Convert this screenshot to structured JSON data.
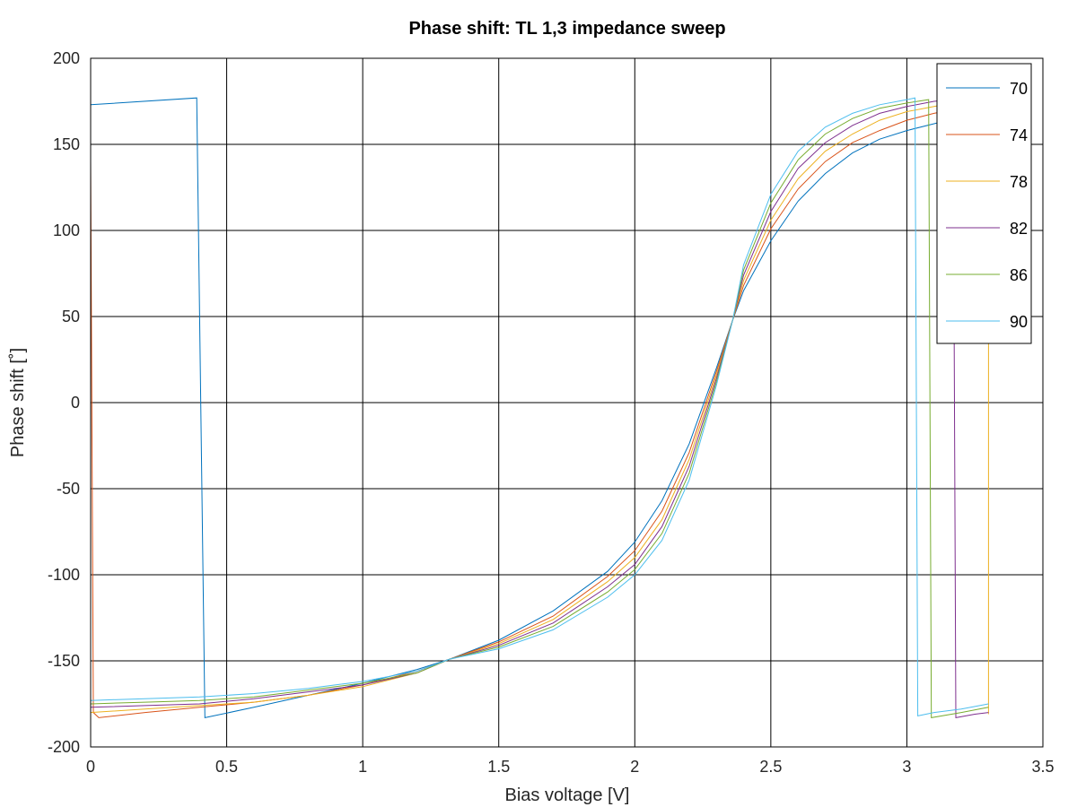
{
  "chart_data": {
    "type": "line",
    "title": "Phase shift: TL 1,3 impedance sweep",
    "xlabel": "Bias voltage [V]",
    "ylabel": "Phase shift [˚]",
    "xlim": [
      0,
      3.5
    ],
    "ylim": [
      -200,
      200
    ],
    "xticks": [
      0,
      0.5,
      1,
      1.5,
      2,
      2.5,
      3,
      3.5
    ],
    "xtick_labels": [
      "0",
      "0.5",
      "1",
      "1.5",
      "2",
      "2.5",
      "3",
      "3.5"
    ],
    "yticks": [
      200,
      150,
      100,
      50,
      0,
      -50,
      -100,
      -150,
      -200
    ],
    "ytick_labels": [
      "200",
      "150",
      "100",
      "50",
      "0",
      "-50",
      "-100",
      "-150",
      "-200"
    ],
    "grid": true,
    "legend_position": "top-right",
    "series": [
      {
        "name": "70",
        "color": "#0072bd",
        "x": [
          0,
          0.39,
          0.42,
          0.6,
          0.8,
          1.0,
          1.2,
          1.32,
          1.5,
          1.7,
          1.9,
          2.0,
          2.1,
          2.2,
          2.3,
          2.36,
          2.4,
          2.5,
          2.6,
          2.7,
          2.8,
          2.9,
          3.0,
          3.1,
          3.2,
          3.3
        ],
        "y": [
          173,
          177,
          -183,
          -177,
          -170,
          -163,
          -155,
          -149,
          -138,
          -121,
          -98,
          -81,
          -57,
          -24,
          20,
          48,
          65,
          94,
          117,
          133,
          145,
          153,
          158,
          162,
          166,
          169
        ]
      },
      {
        "name": "74",
        "color": "#d95319",
        "x": [
          0,
          0.01,
          0.03,
          0.2,
          0.4,
          0.6,
          0.8,
          1.0,
          1.2,
          1.32,
          1.5,
          1.7,
          1.9,
          2.0,
          2.1,
          2.2,
          2.3,
          2.36,
          2.4,
          2.5,
          2.6,
          2.7,
          2.8,
          2.9,
          3.0,
          3.1,
          3.2,
          3.3
        ],
        "y": [
          140,
          -180,
          -183,
          -180,
          -177,
          -174,
          -170,
          -164,
          -156,
          -149,
          -139,
          -124,
          -101,
          -86,
          -63,
          -29,
          18,
          48,
          68,
          101,
          124,
          140,
          151,
          158,
          164,
          168,
          171,
          174
        ]
      },
      {
        "name": "78",
        "color": "#edb120",
        "x": [
          0,
          0.2,
          0.4,
          0.6,
          0.8,
          1.0,
          1.2,
          1.32,
          1.5,
          1.7,
          1.9,
          2.0,
          2.1,
          2.2,
          2.3,
          2.36,
          2.4,
          2.5,
          2.6,
          2.7,
          2.8,
          2.9,
          3.0,
          3.1,
          3.2,
          3.28,
          3.3,
          3.3
        ],
        "y": [
          -180,
          -178,
          -176,
          -174,
          -170,
          -165,
          -157,
          -149,
          -140,
          -126,
          -104,
          -90,
          -68,
          -33,
          16,
          48,
          71,
          106,
          130,
          146,
          156,
          164,
          169,
          172,
          175,
          177,
          100,
          -181
        ]
      },
      {
        "name": "82",
        "color": "#7e2f8e",
        "x": [
          0,
          0.2,
          0.4,
          0.6,
          0.8,
          1.0,
          1.2,
          1.32,
          1.5,
          1.7,
          1.9,
          2.0,
          2.1,
          2.2,
          2.3,
          2.36,
          2.4,
          2.5,
          2.6,
          2.7,
          2.8,
          2.9,
          3.0,
          3.1,
          3.17,
          3.18,
          3.25,
          3.3
        ],
        "y": [
          -177,
          -176,
          -175,
          -172,
          -168,
          -164,
          -157,
          -149,
          -141,
          -128,
          -107,
          -94,
          -72,
          -37,
          14,
          48,
          74,
          111,
          136,
          151,
          161,
          168,
          172,
          175,
          176,
          -183,
          -181,
          -180
        ]
      },
      {
        "name": "86",
        "color": "#77ac30",
        "x": [
          0,
          0.2,
          0.4,
          0.6,
          0.8,
          1.0,
          1.2,
          1.32,
          1.5,
          1.7,
          1.9,
          2.0,
          2.1,
          2.2,
          2.3,
          2.36,
          2.4,
          2.5,
          2.6,
          2.7,
          2.8,
          2.9,
          3.0,
          3.08,
          3.09,
          3.2,
          3.3
        ],
        "y": [
          -175,
          -174,
          -173,
          -171,
          -167,
          -163,
          -157,
          -149,
          -142,
          -130,
          -110,
          -97,
          -76,
          -41,
          12,
          48,
          77,
          116,
          141,
          156,
          165,
          171,
          174,
          176,
          -183,
          -180,
          -177
        ]
      },
      {
        "name": "90",
        "color": "#4dbeee",
        "x": [
          0,
          0.2,
          0.4,
          0.6,
          0.8,
          1.0,
          1.2,
          1.32,
          1.5,
          1.7,
          1.9,
          2.0,
          2.1,
          2.2,
          2.3,
          2.36,
          2.4,
          2.5,
          2.6,
          2.7,
          2.8,
          2.9,
          3.0,
          3.03,
          3.04,
          3.1,
          3.2,
          3.3
        ],
        "y": [
          -173,
          -172,
          -171,
          -169,
          -166,
          -162,
          -156,
          -149,
          -143,
          -132,
          -113,
          -100,
          -80,
          -45,
          10,
          48,
          80,
          121,
          146,
          160,
          168,
          173,
          176,
          177,
          -182,
          -180,
          -178,
          -175
        ]
      }
    ]
  }
}
